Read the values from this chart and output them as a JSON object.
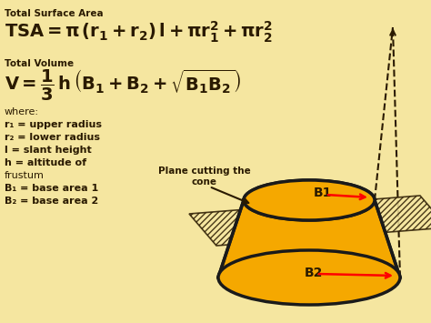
{
  "bg_color": "#f5e6a0",
  "title_tsa": "Total Surface Area",
  "title_vol": "Total Volume",
  "formula_tsa": "TSA = π (r₁ + r₂) l + πr₁² + πr₂²",
  "formula_vol": "V = ¹⁄₃ h (B₁ + B₂ + √(B₁B₂))",
  "where_text": [
    "where:",
    "r₁ = upper radius",
    "r₂ = lower radius",
    "l = slant height",
    "h = altitude of",
    "frustum",
    "B₁ = base area 1",
    "B₂ = base area 2"
  ],
  "label_plane": "Plane cutting the\ncone",
  "label_b1": "B1",
  "label_b2": "B2",
  "text_color_dark": "#2a1a00",
  "text_color_orange": "#cc5500",
  "ellipse_fill": "#f5a800",
  "ellipse_edge": "#1a1a1a",
  "plane_fill": "#f5e6a0",
  "plane_hatch": "////",
  "arrow_color": "#cc0000",
  "dashed_color": "#1a1a1a"
}
